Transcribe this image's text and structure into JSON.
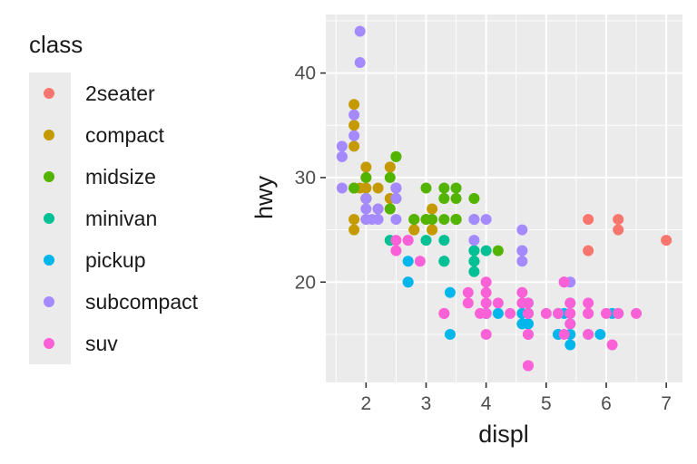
{
  "chart_data": {
    "type": "scatter",
    "xlabel": "displ",
    "ylabel": "hwy",
    "xlim": [
      1.33,
      7.27
    ],
    "ylim": [
      10.4,
      45.6
    ],
    "xticks": [
      2,
      3,
      4,
      5,
      6,
      7
    ],
    "yticks": [
      20,
      30,
      40
    ],
    "grid": true,
    "legend": {
      "title": "class",
      "position": "left",
      "entries": [
        {
          "name": "2seater",
          "color": "#F8766D"
        },
        {
          "name": "compact",
          "color": "#C49A00"
        },
        {
          "name": "midsize",
          "color": "#53B400"
        },
        {
          "name": "minivan",
          "color": "#00C094"
        },
        {
          "name": "pickup",
          "color": "#00B6EB"
        },
        {
          "name": "subcompact",
          "color": "#A58AFF"
        },
        {
          "name": "suv",
          "color": "#FB61D7"
        }
      ]
    },
    "series": [
      {
        "name": "2seater",
        "points": [
          [
            5.7,
            26
          ],
          [
            5.7,
            23
          ],
          [
            6.2,
            26
          ],
          [
            6.2,
            25
          ],
          [
            7.0,
            24
          ]
        ]
      },
      {
        "name": "compact",
        "points": [
          [
            1.8,
            29
          ],
          [
            1.8,
            29
          ],
          [
            2.0,
            31
          ],
          [
            2.0,
            30
          ],
          [
            2.8,
            26
          ],
          [
            2.8,
            26
          ],
          [
            3.1,
            27
          ],
          [
            1.8,
            26
          ],
          [
            1.8,
            25
          ],
          [
            2.0,
            28
          ],
          [
            2.0,
            29
          ],
          [
            2.8,
            25
          ],
          [
            2.8,
            25
          ],
          [
            3.1,
            25
          ],
          [
            3.1,
            25
          ],
          [
            2.2,
            27
          ],
          [
            2.2,
            29
          ],
          [
            2.4,
            31
          ],
          [
            2.4,
            31
          ],
          [
            3.0,
            26
          ],
          [
            1.8,
            37
          ],
          [
            1.8,
            35
          ],
          [
            1.8,
            33
          ],
          [
            1.9,
            29
          ],
          [
            2.0,
            26
          ],
          [
            2.5,
            28
          ],
          [
            2.5,
            29
          ],
          [
            2.4,
            27
          ],
          [
            2.4,
            28
          ]
        ]
      },
      {
        "name": "midsize",
        "points": [
          [
            1.8,
            29
          ],
          [
            2.0,
            30
          ],
          [
            2.0,
            28
          ],
          [
            2.8,
            26
          ],
          [
            3.1,
            26
          ],
          [
            4.2,
            23
          ],
          [
            2.4,
            27
          ],
          [
            2.4,
            30
          ],
          [
            3.3,
            26
          ],
          [
            3.3,
            29
          ],
          [
            3.5,
            26
          ],
          [
            3.5,
            29
          ],
          [
            3.8,
            26
          ],
          [
            3.8,
            28
          ],
          [
            2.5,
            32
          ],
          [
            2.5,
            32
          ],
          [
            3.0,
            26
          ],
          [
            3.5,
            26
          ],
          [
            3.5,
            26
          ],
          [
            3.3,
            28
          ],
          [
            2.0,
            28
          ],
          [
            2.5,
            29
          ],
          [
            3.0,
            29
          ],
          [
            3.5,
            28
          ],
          [
            3.5,
            26
          ]
        ]
      },
      {
        "name": "minivan",
        "points": [
          [
            2.4,
            24
          ],
          [
            3.0,
            24
          ],
          [
            3.3,
            22
          ],
          [
            3.3,
            22
          ],
          [
            3.8,
            22
          ],
          [
            3.8,
            21
          ],
          [
            3.8,
            23
          ],
          [
            3.8,
            23
          ],
          [
            4.0,
            23
          ],
          [
            3.8,
            22
          ],
          [
            3.3,
            24
          ]
        ]
      },
      {
        "name": "pickup",
        "points": [
          [
            2.7,
            20
          ],
          [
            2.7,
            20
          ],
          [
            2.7,
            22
          ],
          [
            3.4,
            15
          ],
          [
            3.4,
            19
          ],
          [
            4.0,
            17
          ],
          [
            4.0,
            17
          ],
          [
            4.2,
            17
          ],
          [
            4.7,
            17
          ],
          [
            4.7,
            16
          ],
          [
            4.7,
            16
          ],
          [
            4.7,
            17
          ],
          [
            5.2,
            15
          ],
          [
            5.2,
            17
          ],
          [
            5.7,
            15
          ],
          [
            5.9,
            15
          ],
          [
            5.4,
            14
          ],
          [
            5.4,
            16
          ],
          [
            4.7,
            17
          ],
          [
            4.6,
            17
          ],
          [
            4.6,
            16
          ],
          [
            4.7,
            18
          ],
          [
            5.3,
            17
          ],
          [
            5.4,
            15
          ],
          [
            5.4,
            18
          ],
          [
            6.1,
            17
          ],
          [
            5.2,
            15
          ]
        ]
      },
      {
        "name": "subcompact",
        "points": [
          [
            3.8,
            26
          ],
          [
            3.8,
            24
          ],
          [
            4.0,
            26
          ],
          [
            4.6,
            25
          ],
          [
            4.6,
            23
          ],
          [
            4.6,
            22
          ],
          [
            4.6,
            23
          ],
          [
            5.4,
            20
          ],
          [
            2.0,
            28
          ],
          [
            1.6,
            33
          ],
          [
            1.6,
            32
          ],
          [
            1.6,
            32
          ],
          [
            1.6,
            29
          ],
          [
            1.8,
            34
          ],
          [
            1.8,
            36
          ],
          [
            1.9,
            44
          ],
          [
            1.9,
            41
          ],
          [
            2.0,
            26
          ],
          [
            2.0,
            27
          ],
          [
            2.5,
            29
          ],
          [
            2.5,
            26
          ],
          [
            2.2,
            26
          ],
          [
            2.5,
            28
          ],
          [
            2.7,
            24
          ],
          [
            2.2,
            27
          ],
          [
            2.5,
            29
          ],
          [
            2.1,
            26
          ]
        ]
      },
      {
        "name": "suv",
        "points": [
          [
            5.3,
            20
          ],
          [
            5.3,
            15
          ],
          [
            5.3,
            20
          ],
          [
            5.7,
            17
          ],
          [
            6.0,
            17
          ],
          [
            5.7,
            15
          ],
          [
            5.7,
            18
          ],
          [
            6.2,
            17
          ],
          [
            6.2,
            17
          ],
          [
            6.5,
            17
          ],
          [
            3.7,
            19
          ],
          [
            3.7,
            18
          ],
          [
            3.9,
            17
          ],
          [
            4.7,
            18
          ],
          [
            4.7,
            12
          ],
          [
            4.7,
            12
          ],
          [
            4.7,
            17
          ],
          [
            4.7,
            15
          ],
          [
            5.2,
            17
          ],
          [
            4.0,
            19
          ],
          [
            4.0,
            20
          ],
          [
            4.0,
            15
          ],
          [
            4.0,
            17
          ],
          [
            4.6,
            19
          ],
          [
            5.0,
            17
          ],
          [
            4.2,
            18
          ],
          [
            4.4,
            17
          ],
          [
            4.6,
            18
          ],
          [
            5.4,
            18
          ],
          [
            5.4,
            16
          ],
          [
            5.4,
            17
          ],
          [
            3.3,
            17
          ],
          [
            3.3,
            17
          ],
          [
            4.0,
            18
          ],
          [
            4.7,
            15
          ],
          [
            5.7,
            17
          ],
          [
            6.1,
            14
          ],
          [
            2.5,
            23
          ],
          [
            2.5,
            24
          ],
          [
            2.9,
            22
          ],
          [
            2.7,
            24
          ],
          [
            4.7,
            17
          ],
          [
            4.7,
            12
          ]
        ]
      }
    ]
  }
}
